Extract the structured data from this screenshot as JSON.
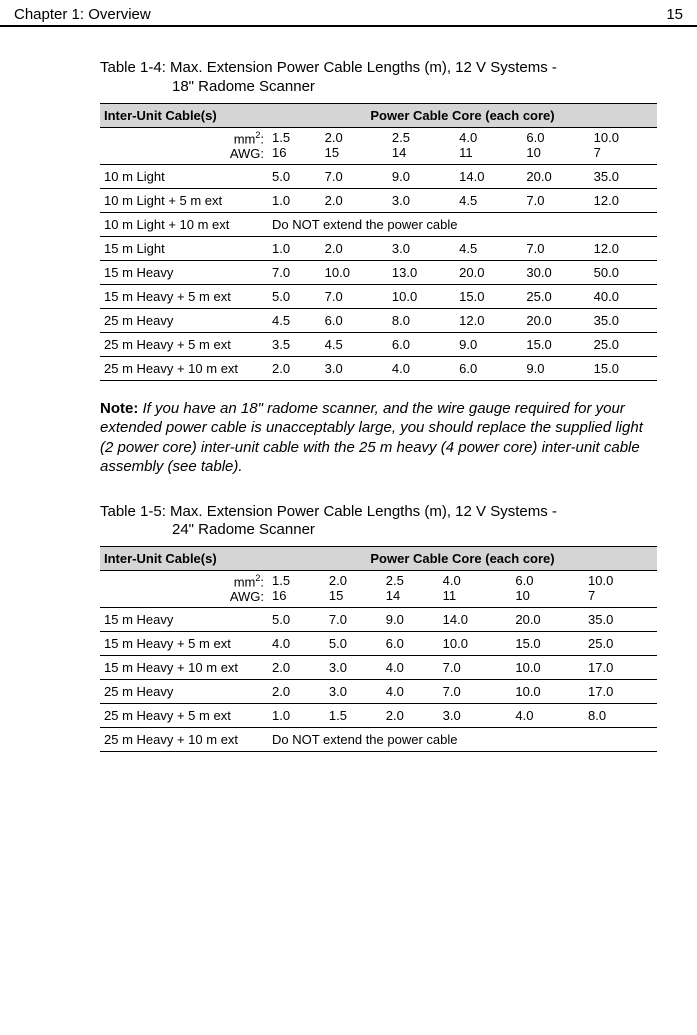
{
  "header": {
    "chapter": "Chapter 1: Overview",
    "page": "15"
  },
  "table1": {
    "caption_prefix": "Table 1-4: Max. Extension Power Cable Lengths (m), 12 V Systems - ",
    "caption_line2": "18\" Radome Scanner",
    "col_left": "Inter-Unit Cable(s)",
    "col_right": "Power Cable Core (each core)",
    "units_label_mm": "mm",
    "units_label_awg": "AWG:",
    "cols_mm": [
      "1.5",
      "2.0",
      "2.5",
      "4.0",
      "6.0",
      "10.0"
    ],
    "cols_awg": [
      "16",
      "15",
      "14",
      "11",
      "10",
      "7"
    ],
    "rows": [
      {
        "label": "10 m Light",
        "vals": [
          "5.0",
          "7.0",
          "9.0",
          "14.0",
          "20.0",
          "35.0"
        ]
      },
      {
        "label": "10 m Light + 5 m ext",
        "vals": [
          "1.0",
          "2.0",
          "3.0",
          "4.5",
          "7.0",
          "12.0"
        ]
      },
      {
        "label": "10 m Light + 10 m ext",
        "noextend": true,
        "msg": "Do NOT extend the power cable"
      },
      {
        "label": "15 m Light",
        "vals": [
          "1.0",
          "2.0",
          "3.0",
          "4.5",
          "7.0",
          "12.0"
        ]
      },
      {
        "label": "15 m Heavy",
        "vals": [
          "7.0",
          "10.0",
          "13.0",
          "20.0",
          "30.0",
          "50.0"
        ]
      },
      {
        "label": "15 m Heavy + 5 m ext",
        "vals": [
          "5.0",
          "7.0",
          "10.0",
          "15.0",
          "25.0",
          "40.0"
        ]
      },
      {
        "label": "25 m Heavy",
        "vals": [
          "4.5",
          "6.0",
          "8.0",
          "12.0",
          "20.0",
          "35.0"
        ]
      },
      {
        "label": "25 m Heavy + 5 m ext",
        "vals": [
          "3.5",
          "4.5",
          "6.0",
          "9.0",
          "15.0",
          "25.0"
        ]
      },
      {
        "label": "25 m Heavy + 10 m ext",
        "vals": [
          "2.0",
          "3.0",
          "4.0",
          "6.0",
          "9.0",
          "15.0"
        ]
      }
    ]
  },
  "note": {
    "lead": "Note: ",
    "body": "If you have an 18\" radome scanner, and the wire gauge required for your extended power cable is unacceptably large, you should replace the supplied light (2 power core) inter-unit cable with the 25 m heavy (4 power core) inter-unit cable assembly (see table)."
  },
  "table2": {
    "caption_prefix": "Table 1-5: Max. Extension Power Cable Lengths (m), 12 V Systems - ",
    "caption_line2": "24\" Radome Scanner",
    "col_left": "Inter-Unit Cable(s)",
    "col_right": "Power Cable Core (each core)",
    "units_label_mm": "mm",
    "units_label_awg": "AWG:",
    "cols_mm": [
      "1.5",
      "2.0",
      "2.5",
      "4.0",
      "6.0",
      "10.0"
    ],
    "cols_awg": [
      "16",
      "15",
      "14",
      "11",
      "10",
      "7"
    ],
    "rows": [
      {
        "label": "15 m Heavy",
        "vals": [
          "5.0",
          "7.0",
          "9.0",
          "14.0",
          "20.0",
          "35.0"
        ]
      },
      {
        "label": "15 m Heavy + 5 m ext",
        "vals": [
          "4.0",
          "5.0",
          "6.0",
          "10.0",
          "15.0",
          "25.0"
        ]
      },
      {
        "label": "15 m Heavy + 10 m ext",
        "vals": [
          "2.0",
          "3.0",
          "4.0",
          "7.0",
          "10.0",
          "17.0"
        ]
      },
      {
        "label": "25 m Heavy",
        "vals": [
          "2.0",
          "3.0",
          "4.0",
          "7.0",
          "10.0",
          "17.0"
        ]
      },
      {
        "label": "25 m Heavy + 5 m ext",
        "vals": [
          "1.0",
          "1.5",
          "2.0",
          "3.0",
          "4.0",
          "8.0"
        ]
      },
      {
        "label": "25 m Heavy + 10 m ext",
        "noextend": true,
        "msg": "Do NOT extend the power cable"
      }
    ]
  }
}
